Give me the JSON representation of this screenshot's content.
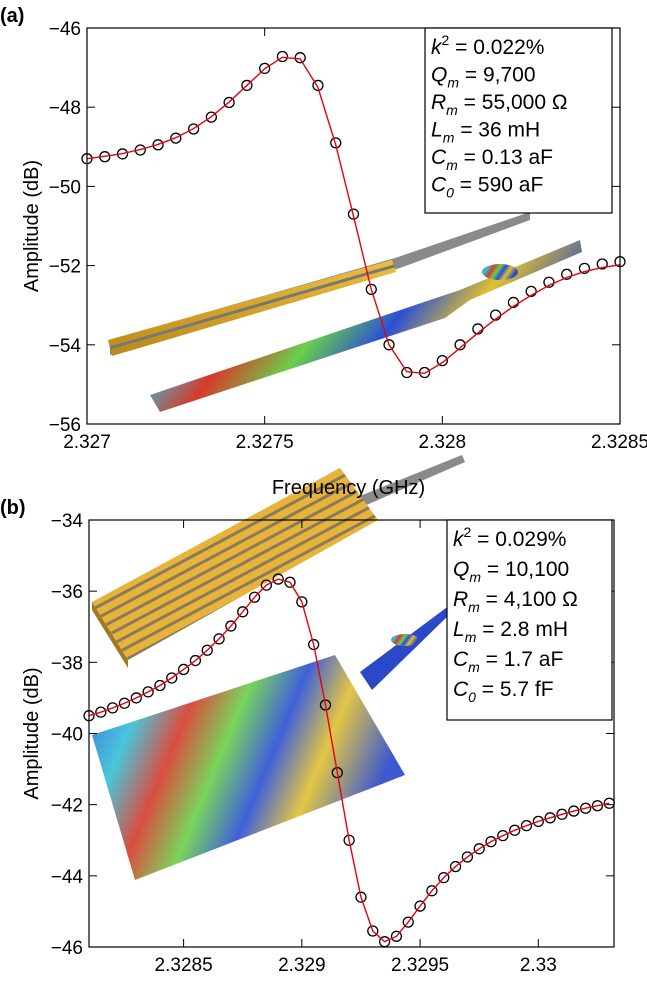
{
  "chart_data": [
    {
      "type": "line",
      "panel_label": "(a)",
      "x_label": "Frequency (GHz)",
      "y_label": "Amplitude (dB)",
      "xlim": [
        2.327,
        2.3285
      ],
      "ylim": [
        -56,
        -46
      ],
      "xticks": [
        2.327,
        2.3275,
        2.328,
        2.3285
      ],
      "yticks": [
        {
          "value": -56,
          "label": "−56"
        },
        {
          "value": -54,
          "label": "−54"
        },
        {
          "value": -52,
          "label": "−52"
        },
        {
          "value": -50,
          "label": "−50"
        },
        {
          "value": -48,
          "label": "−48"
        },
        {
          "value": -46,
          "label": "−46"
        }
      ],
      "x": [
        2.327,
        2.32705,
        2.3271,
        2.32715,
        2.3272,
        2.32725,
        2.3273,
        2.32735,
        2.3274,
        2.32745,
        2.3275,
        2.32755,
        2.3276,
        2.32765,
        2.3277,
        2.32775,
        2.3278,
        2.32785,
        2.3279,
        2.32795,
        2.328,
        2.32805,
        2.3281,
        2.32815,
        2.3282,
        2.32825,
        2.3283,
        2.32835,
        2.3284,
        2.32845,
        2.3285
      ],
      "series": [
        {
          "style": "markers",
          "color": "#000000",
          "values": [
            -49.3,
            -49.25,
            -49.18,
            -49.08,
            -48.95,
            -48.78,
            -48.55,
            -48.25,
            -47.88,
            -47.45,
            -47.02,
            -46.72,
            -46.75,
            -47.45,
            -48.9,
            -50.7,
            -52.6,
            -54.0,
            -54.7,
            -54.7,
            -54.4,
            -54.0,
            -53.6,
            -53.25,
            -52.93,
            -52.65,
            -52.42,
            -52.22,
            -52.07,
            -51.96,
            -51.9
          ]
        },
        {
          "style": "line",
          "color": "#e8000b",
          "values": [
            -49.3,
            -49.24,
            -49.17,
            -49.07,
            -48.94,
            -48.77,
            -48.54,
            -48.24,
            -47.87,
            -47.45,
            -47.03,
            -46.74,
            -46.78,
            -47.5,
            -48.95,
            -50.75,
            -52.6,
            -54.0,
            -54.68,
            -54.72,
            -54.45,
            -54.08,
            -53.7,
            -53.35,
            -53.03,
            -52.75,
            -52.5,
            -52.3,
            -52.15,
            -52.05,
            -51.98
          ]
        }
      ],
      "annotation": [
        {
          "var": "k",
          "sup": "2",
          "text": " = 0.022%"
        },
        {
          "var": "Q",
          "sub": "m",
          "text": " = 9,700"
        },
        {
          "var": "R",
          "sub": "m",
          "text": " = 55,000 Ω"
        },
        {
          "var": "L",
          "sub": "m",
          "text": " = 36 mH"
        },
        {
          "var": "C",
          "sub": "m",
          "text": " = 0.13 aF"
        },
        {
          "var": "C",
          "sub": "0",
          "text": " = 590 aF"
        }
      ]
    },
    {
      "type": "line",
      "panel_label": "(b)",
      "x_label": "Frequency (GHz)",
      "y_label": "Amplitude (dB)",
      "xlim": [
        2.3281,
        2.33032
      ],
      "ylim": [
        -46,
        -34
      ],
      "xticks": [
        2.3285,
        2.329,
        2.3295,
        2.33
      ],
      "yticks": [
        {
          "value": -46,
          "label": "−46"
        },
        {
          "value": -44,
          "label": "−44"
        },
        {
          "value": -42,
          "label": "−42"
        },
        {
          "value": -40,
          "label": "−40"
        },
        {
          "value": -38,
          "label": "−38"
        },
        {
          "value": -36,
          "label": "−36"
        },
        {
          "value": -34,
          "label": "−34"
        }
      ],
      "x": [
        2.3281,
        2.32815,
        2.3282,
        2.32825,
        2.3283,
        2.32835,
        2.3284,
        2.32845,
        2.3285,
        2.32855,
        2.3286,
        2.32865,
        2.3287,
        2.32875,
        2.3288,
        2.32885,
        2.3289,
        2.32895,
        2.329,
        2.32905,
        2.3291,
        2.32915,
        2.3292,
        2.32925,
        2.3293,
        2.32935,
        2.3294,
        2.32945,
        2.3295,
        2.32955,
        2.3296,
        2.32965,
        2.3297,
        2.32975,
        2.3298,
        2.32985,
        2.3299,
        2.32995,
        2.33,
        2.33005,
        2.3301,
        2.33015,
        2.3302,
        2.33025,
        2.3303
      ],
      "series": [
        {
          "style": "markers",
          "color": "#000000",
          "values": [
            -39.5,
            -39.4,
            -39.28,
            -39.15,
            -39.0,
            -38.83,
            -38.65,
            -38.44,
            -38.2,
            -37.95,
            -37.66,
            -37.34,
            -36.98,
            -36.58,
            -36.17,
            -35.83,
            -35.66,
            -35.75,
            -36.3,
            -37.5,
            -39.2,
            -41.1,
            -43.0,
            -44.6,
            -45.55,
            -45.85,
            -45.7,
            -45.3,
            -44.85,
            -44.42,
            -44.05,
            -43.74,
            -43.47,
            -43.24,
            -43.04,
            -42.87,
            -42.72,
            -42.59,
            -42.47,
            -42.37,
            -42.27,
            -42.18,
            -42.1,
            -42.03,
            -41.96
          ]
        },
        {
          "style": "line",
          "color": "#e8000b",
          "values": [
            -39.5,
            -39.4,
            -39.28,
            -39.15,
            -39.0,
            -38.83,
            -38.65,
            -38.44,
            -38.2,
            -37.95,
            -37.66,
            -37.34,
            -36.98,
            -36.58,
            -36.17,
            -35.83,
            -35.66,
            -35.75,
            -36.3,
            -37.5,
            -39.2,
            -41.1,
            -43.0,
            -44.6,
            -45.55,
            -45.85,
            -45.7,
            -45.3,
            -44.85,
            -44.42,
            -44.05,
            -43.74,
            -43.47,
            -43.24,
            -43.04,
            -42.87,
            -42.72,
            -42.59,
            -42.47,
            -42.37,
            -42.27,
            -42.18,
            -42.1,
            -42.03,
            -41.96
          ]
        }
      ],
      "annotation": [
        {
          "var": "k",
          "sup": "2",
          "text": " = 0.029%"
        },
        {
          "var": "Q",
          "sub": "m",
          "text": " = 10,100"
        },
        {
          "var": "R",
          "sub": "m",
          "text": " = 4,100 Ω"
        },
        {
          "var": "L",
          "sub": "m",
          "text": " = 2.8 mH"
        },
        {
          "var": "C",
          "sub": "m",
          "text": " = 1.7 aF"
        },
        {
          "var": "C",
          "sub": "0",
          "text": " = 5.7 fF"
        }
      ]
    }
  ]
}
